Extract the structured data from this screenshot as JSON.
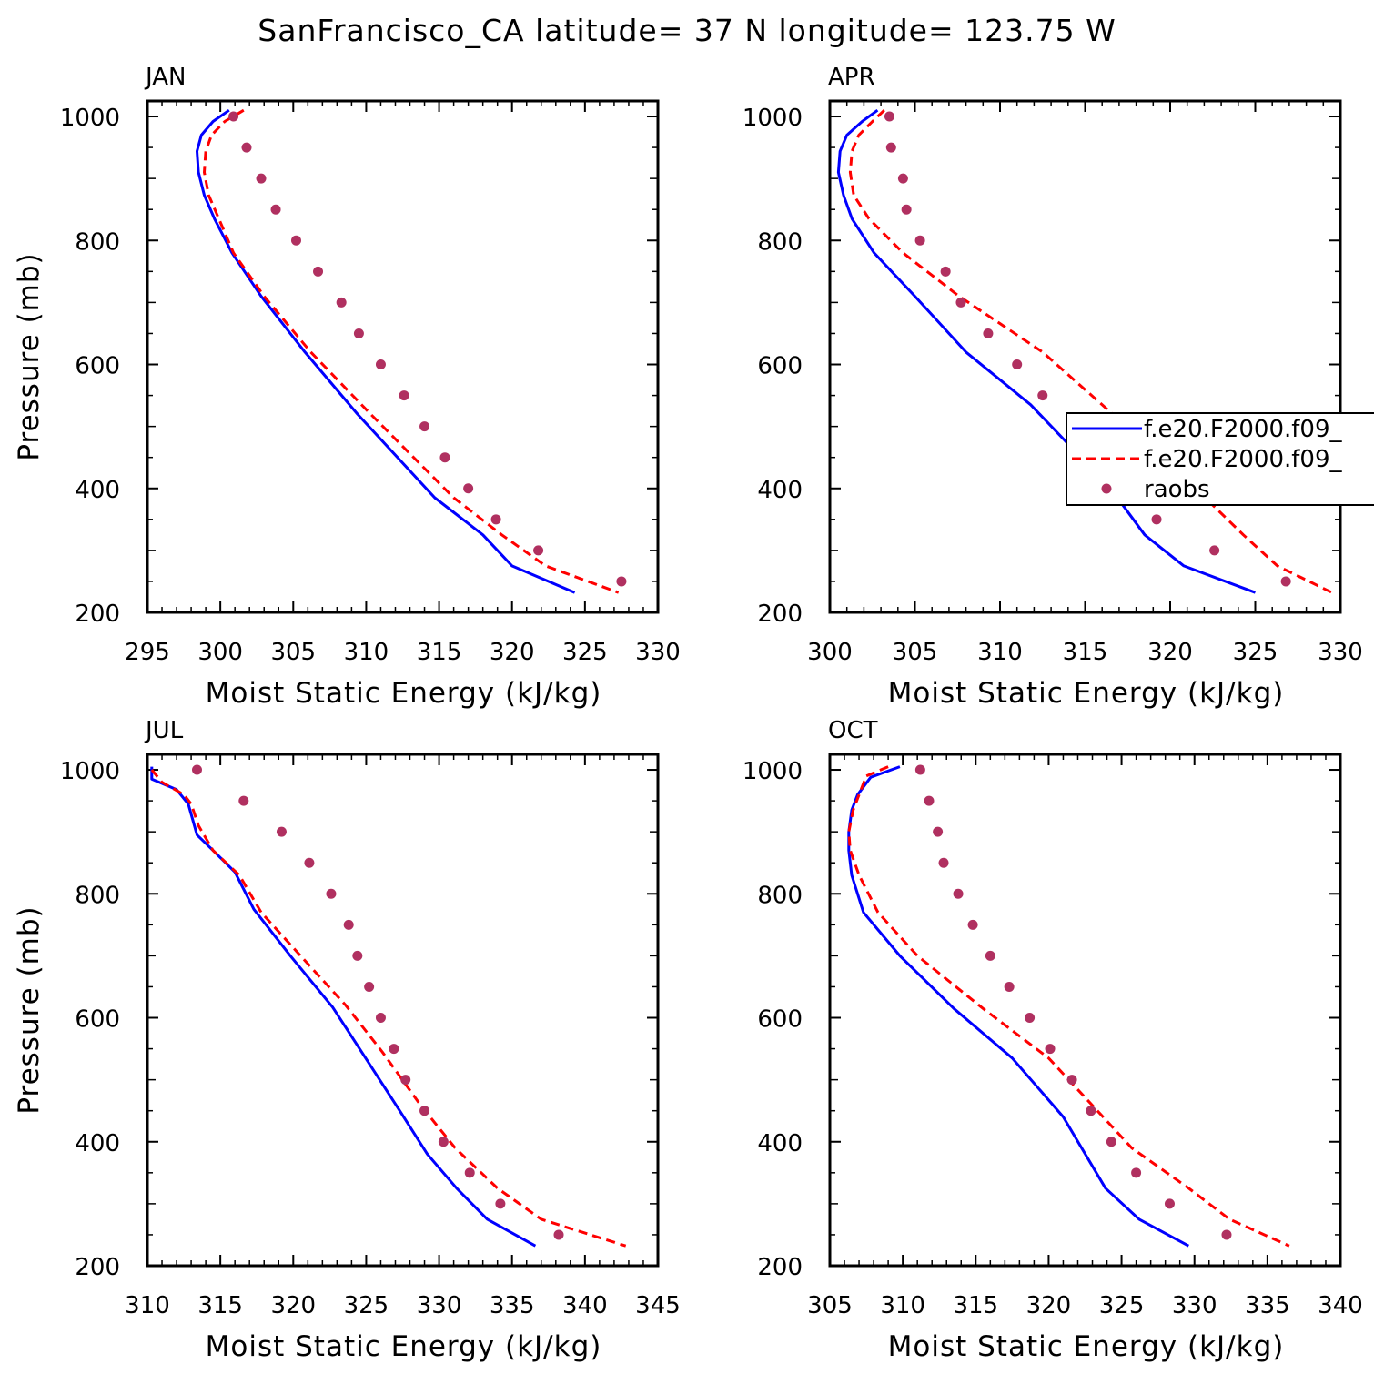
{
  "title": "SanFrancisco_CA  latitude= 37 N longitude= 123.75 W",
  "legend": [
    {
      "label": "f.e20.F2000.f09_",
      "color": "#0000ff",
      "style": "solid"
    },
    {
      "label": "f.e20.F2000.f09_",
      "color": "#ff0000",
      "style": "dashed"
    },
    {
      "label": "raobs",
      "color": "#b03060",
      "style": "dot"
    }
  ],
  "chart_data": [
    {
      "type": "line",
      "title": "JAN",
      "xlabel": "Moist Static Energy (kJ/kg)",
      "ylabel": "Pressure (mb)",
      "xlim": [
        295,
        330
      ],
      "ylim": [
        1025,
        200
      ],
      "xticks": [
        "295",
        "300",
        "305",
        "310",
        "315",
        "320",
        "325",
        "330"
      ],
      "yticks": [
        "200",
        "400",
        "600",
        "800",
        "1000"
      ],
      "series": [
        {
          "style": "solid",
          "color": "#0000ff",
          "x": [
            300.6,
            299.5,
            298.7,
            298.4,
            298.5,
            298.9,
            299.6,
            300.8,
            302.8,
            305.8,
            309.4,
            314.7,
            318.0,
            320.0,
            324.3
          ],
          "y": [
            1010,
            992,
            970,
            944,
            910,
            873,
            835,
            780,
            710,
            620,
            520,
            385,
            325,
            275,
            232
          ]
        },
        {
          "style": "dashed",
          "color": "#ff0000",
          "x": [
            301.6,
            300.3,
            299.4,
            299.0,
            298.9,
            299.2,
            299.9,
            300.9,
            303.0,
            306.2,
            310.3,
            316.0,
            319.3,
            322.3,
            327.3
          ],
          "y": [
            1010,
            992,
            970,
            944,
            910,
            873,
            835,
            780,
            710,
            620,
            520,
            385,
            325,
            275,
            232
          ]
        },
        {
          "style": "dot",
          "color": "#b03060",
          "x": [
            300.9,
            301.8,
            302.8,
            303.8,
            305.2,
            306.7,
            308.3,
            309.5,
            311.0,
            312.6,
            314.0,
            315.4,
            317.0,
            318.9,
            321.8,
            327.5
          ],
          "y": [
            1000,
            950,
            900,
            850,
            800,
            750,
            700,
            650,
            600,
            550,
            500,
            450,
            400,
            350,
            300,
            250
          ]
        }
      ]
    },
    {
      "type": "line",
      "title": "APR",
      "xlabel": "Moist Static Energy (kJ/kg)",
      "ylabel": "",
      "xlim": [
        300,
        330
      ],
      "ylim": [
        1025,
        200
      ],
      "xticks": [
        "300",
        "305",
        "310",
        "315",
        "320",
        "325",
        "330"
      ],
      "yticks": [
        "200",
        "400",
        "600",
        "800",
        "1000"
      ],
      "series": [
        {
          "style": "solid",
          "color": "#0000ff",
          "x": [
            302.8,
            301.9,
            301.0,
            300.6,
            300.5,
            300.8,
            301.3,
            302.6,
            305.0,
            308.0,
            311.8,
            316.5,
            318.5,
            320.8,
            325.0
          ],
          "y": [
            1010,
            992,
            970,
            944,
            910,
            873,
            835,
            780,
            710,
            620,
            535,
            400,
            325,
            275,
            232
          ]
        },
        {
          "style": "dashed",
          "color": "#ff0000",
          "x": [
            303.2,
            302.5,
            301.7,
            301.3,
            301.2,
            301.4,
            302.3,
            304.3,
            307.6,
            312.5,
            316.0,
            321.5,
            324.3,
            326.3,
            329.5
          ],
          "y": [
            1010,
            992,
            970,
            944,
            910,
            873,
            835,
            780,
            710,
            620,
            535,
            400,
            325,
            275,
            232
          ]
        },
        {
          "style": "dot",
          "color": "#b03060",
          "x": [
            303.5,
            303.6,
            304.3,
            304.5,
            305.3,
            306.8,
            307.7,
            309.3,
            311.0,
            312.5,
            314.3,
            315.6,
            317.2,
            319.2,
            322.6,
            326.8
          ],
          "y": [
            1000,
            950,
            900,
            850,
            800,
            750,
            700,
            650,
            600,
            550,
            500,
            450,
            400,
            350,
            300,
            250
          ]
        }
      ]
    },
    {
      "type": "line",
      "title": "JUL",
      "xlabel": "Moist Static Energy (kJ/kg)",
      "ylabel": "Pressure (mb)",
      "xlim": [
        310,
        345
      ],
      "ylim": [
        1025,
        200
      ],
      "xticks": [
        "310",
        "315",
        "320",
        "325",
        "330",
        "335",
        "340",
        "345"
      ],
      "yticks": [
        "200",
        "400",
        "600",
        "800",
        "1000"
      ],
      "series": [
        {
          "style": "solid",
          "color": "#0000ff",
          "x": [
            310.3,
            310.3,
            312.0,
            312.8,
            313.4,
            314.5,
            316.0,
            317.3,
            319.8,
            322.7,
            325.1,
            327.3,
            329.2,
            331.2,
            333.3,
            336.6
          ],
          "y": [
            1005,
            985,
            968,
            945,
            895,
            870,
            835,
            775,
            700,
            617,
            530,
            450,
            380,
            325,
            275,
            232
          ]
        },
        {
          "style": "dashed",
          "color": "#ff0000",
          "x": [
            310.3,
            311.0,
            312.5,
            313.0,
            313.5,
            314.5,
            316.3,
            317.8,
            320.5,
            323.6,
            326.1,
            328.7,
            331.1,
            334.0,
            337.0,
            342.8
          ],
          "y": [
            1000,
            980,
            960,
            945,
            910,
            870,
            830,
            770,
            700,
            620,
            545,
            460,
            390,
            325,
            275,
            232
          ]
        },
        {
          "style": "dot",
          "color": "#b03060",
          "x": [
            313.4,
            316.6,
            319.2,
            321.1,
            322.6,
            323.8,
            324.4,
            325.2,
            326.0,
            326.9,
            327.7,
            329.0,
            330.3,
            332.1,
            334.2,
            338.2
          ],
          "y": [
            1000,
            950,
            900,
            850,
            800,
            750,
            700,
            650,
            600,
            550,
            500,
            450,
            400,
            350,
            300,
            250
          ]
        }
      ]
    },
    {
      "type": "line",
      "title": "OCT",
      "xlabel": "Moist Static Energy (kJ/kg)",
      "ylabel": "",
      "xlim": [
        305,
        340
      ],
      "ylim": [
        1025,
        200
      ],
      "xticks": [
        "305",
        "310",
        "315",
        "320",
        "325",
        "330",
        "335",
        "340"
      ],
      "yticks": [
        "200",
        "400",
        "600",
        "800",
        "1000"
      ],
      "series": [
        {
          "style": "solid",
          "color": "#0000ff",
          "x": [
            309.8,
            307.8,
            306.9,
            306.5,
            306.3,
            306.3,
            306.5,
            307.3,
            309.8,
            313.5,
            317.5,
            321.0,
            323.9,
            326.2,
            329.6
          ],
          "y": [
            1005,
            988,
            960,
            935,
            900,
            870,
            830,
            770,
            700,
            615,
            535,
            440,
            325,
            275,
            232
          ]
        },
        {
          "style": "dashed",
          "color": "#ff0000",
          "x": [
            309.0,
            307.5,
            307.0,
            306.6,
            306.3,
            306.4,
            307.0,
            308.3,
            311.0,
            315.5,
            320.0,
            325.7,
            329.6,
            332.4,
            336.5
          ],
          "y": [
            1005,
            990,
            960,
            935,
            900,
            870,
            830,
            770,
            700,
            615,
            535,
            390,
            325,
            275,
            232
          ]
        },
        {
          "style": "dot",
          "color": "#b03060",
          "x": [
            311.2,
            311.8,
            312.4,
            312.8,
            313.8,
            314.8,
            316.0,
            317.3,
            318.7,
            320.1,
            321.6,
            322.9,
            324.3,
            326.0,
            328.3,
            332.2
          ],
          "y": [
            1000,
            950,
            900,
            850,
            800,
            750,
            700,
            650,
            600,
            550,
            500,
            450,
            400,
            350,
            300,
            250
          ]
        }
      ]
    }
  ]
}
